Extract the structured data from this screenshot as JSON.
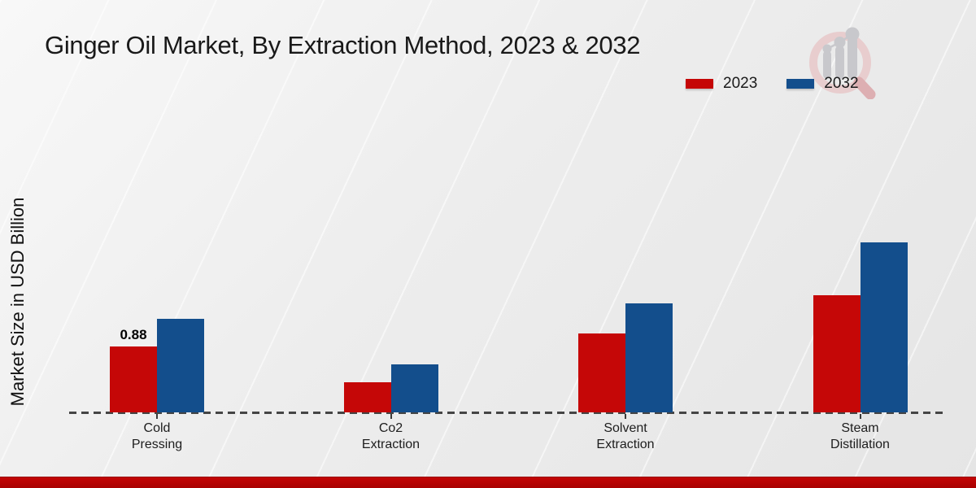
{
  "title": "Ginger Oil Market, By Extraction Method, 2023 & 2032",
  "y_axis_label": "Market Size in USD Billion",
  "legend": {
    "items": [
      {
        "label": "2023",
        "color": "#c50707"
      },
      {
        "label": "2032",
        "color": "#134e8c"
      }
    ]
  },
  "chart_data": {
    "type": "bar",
    "title": "Ginger Oil Market, By Extraction Method, 2023 & 2032",
    "xlabel": "",
    "ylabel": "Market Size in USD Billion",
    "categories": [
      "Cold Pressing",
      "Co2 Extraction",
      "Solvent Extraction",
      "Steam Distillation"
    ],
    "series": [
      {
        "name": "2023",
        "color": "#c50707",
        "values": [
          0.88,
          0.4,
          1.05,
          1.56
        ]
      },
      {
        "name": "2032",
        "color": "#134e8c",
        "values": [
          1.25,
          0.64,
          1.46,
          2.27
        ]
      }
    ],
    "value_labels": [
      {
        "series": "2023",
        "category": "Cold Pressing",
        "text": "0.88"
      }
    ],
    "ylim": [
      0,
      2.5
    ],
    "grid": false,
    "axis_style": "dashed-baseline-only",
    "legend_position": "top-right"
  },
  "watermark": {
    "name": "magnifier-growth-chart-logo",
    "ring_color": "#e8cdce",
    "handle_color": "#ddafb2",
    "bars_color": "#c8c8cc"
  },
  "footer": {
    "bar_color_top": "#c30505",
    "bar_color_bottom": "#a80101"
  }
}
